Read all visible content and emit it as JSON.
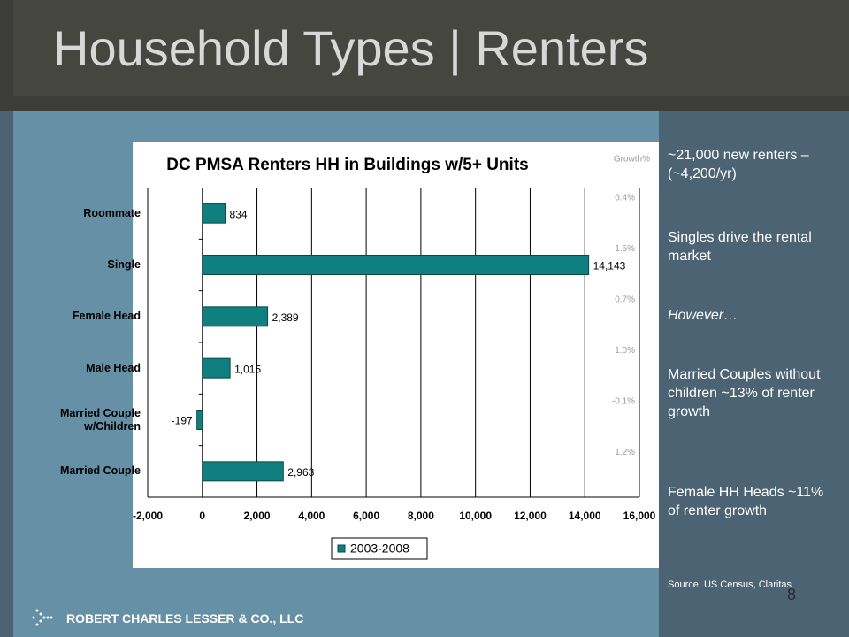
{
  "header": {
    "title": "Household Types | Renters"
  },
  "chart_data": {
    "type": "bar",
    "orientation": "horizontal",
    "title": "DC PMSA Renters HH in Buildings w/5+ Units",
    "categories": [
      "Roommate",
      "Single",
      "Female Head",
      "Male Head",
      "Married Couple w/Children",
      "Married Couple"
    ],
    "series": [
      {
        "name": "2003-2008",
        "color": "#0f7f7f",
        "values": [
          834,
          14143,
          2389,
          1015,
          -197,
          2963
        ],
        "value_labels": [
          "834",
          "14,143",
          "2,389",
          "1,015",
          "-197",
          "2,963"
        ]
      }
    ],
    "xlim": [
      -2000,
      16000
    ],
    "xticks": [
      {
        "value": -2000,
        "label": "-2,000"
      },
      0,
      {
        "value": 2000,
        "label": "2,000"
      },
      {
        "value": 4000,
        "label": "4,000"
      },
      {
        "value": 6000,
        "label": "6,000"
      },
      {
        "value": 8000,
        "label": "8,000"
      },
      {
        "value": 10000,
        "label": "10,000"
      },
      {
        "value": 12000,
        "label": "12,000"
      },
      {
        "value": 14000,
        "label": "14,000"
      },
      {
        "value": 16000,
        "label": "16,000"
      }
    ],
    "grid": true,
    "legend": "bottom",
    "growth_header": "Growth%",
    "growth_labels": [
      "0.4%",
      "1.5%",
      "0.7%",
      "1.0%",
      "-0.1%",
      "1.2%"
    ]
  },
  "notes": [
    "~21,000 new renters –(~4,200/yr)",
    "Singles drive the rental market",
    "However…",
    "Married Couples without children ~13% of renter growth",
    "Female HH Heads ~11% of renter growth"
  ],
  "source": "Source: US Census, Claritas",
  "footer": {
    "company": "ROBERT CHARLES LESSER & CO., LLC",
    "page": "8"
  }
}
